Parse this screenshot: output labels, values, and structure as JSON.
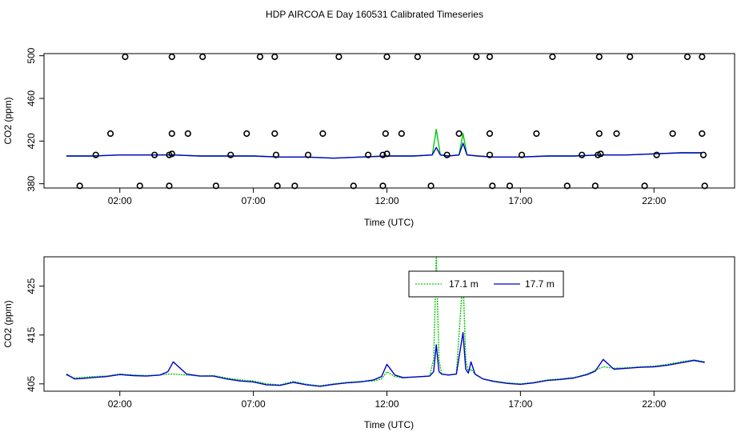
{
  "title": "HDP AIRCOA E  Day 160531  Calibrated Timeseries",
  "colors": {
    "green": "#00c800",
    "blue": "#0000cc",
    "axis": "#000000",
    "points": "#000000"
  },
  "chart_data": [
    {
      "type": "scatter",
      "name": "top-panel",
      "xlabel": "Time (UTC)",
      "ylabel": "CO2 (ppm)",
      "xlim": [
        0,
        24
      ],
      "ylim": [
        376,
        502
      ],
      "xticks": [
        2,
        7,
        12,
        17,
        22
      ],
      "xtick_labels": [
        "02:00",
        "07:00",
        "12:00",
        "17:00",
        "22:00"
      ],
      "yticks": [
        380,
        420,
        460,
        500
      ],
      "ytick_labels": [
        "380",
        "420",
        "460",
        "500"
      ],
      "points": [
        {
          "x": 2.2,
          "y": 499
        },
        {
          "x": 3.95,
          "y": 499
        },
        {
          "x": 5.1,
          "y": 499
        },
        {
          "x": 7.25,
          "y": 499
        },
        {
          "x": 7.8,
          "y": 499
        },
        {
          "x": 10.2,
          "y": 499
        },
        {
          "x": 12.0,
          "y": 499
        },
        {
          "x": 13.15,
          "y": 499
        },
        {
          "x": 15.35,
          "y": 499
        },
        {
          "x": 15.85,
          "y": 499
        },
        {
          "x": 18.2,
          "y": 499
        },
        {
          "x": 19.95,
          "y": 499
        },
        {
          "x": 21.1,
          "y": 499
        },
        {
          "x": 23.25,
          "y": 499
        },
        {
          "x": 23.8,
          "y": 499
        },
        {
          "x": 1.65,
          "y": 427
        },
        {
          "x": 3.95,
          "y": 427
        },
        {
          "x": 4.55,
          "y": 427
        },
        {
          "x": 6.75,
          "y": 427
        },
        {
          "x": 7.8,
          "y": 427
        },
        {
          "x": 9.6,
          "y": 427
        },
        {
          "x": 11.95,
          "y": 427
        },
        {
          "x": 12.55,
          "y": 427
        },
        {
          "x": 14.7,
          "y": 427
        },
        {
          "x": 15.85,
          "y": 427
        },
        {
          "x": 17.6,
          "y": 427
        },
        {
          "x": 19.95,
          "y": 427
        },
        {
          "x": 20.6,
          "y": 427
        },
        {
          "x": 22.7,
          "y": 427
        },
        {
          "x": 23.8,
          "y": 427
        },
        {
          "x": 1.1,
          "y": 407
        },
        {
          "x": 3.3,
          "y": 407
        },
        {
          "x": 3.85,
          "y": 407
        },
        {
          "x": 3.95,
          "y": 408
        },
        {
          "x": 6.15,
          "y": 407
        },
        {
          "x": 7.85,
          "y": 407
        },
        {
          "x": 9.05,
          "y": 407
        },
        {
          "x": 11.3,
          "y": 407
        },
        {
          "x": 11.85,
          "y": 407
        },
        {
          "x": 12.0,
          "y": 408
        },
        {
          "x": 14.25,
          "y": 407
        },
        {
          "x": 15.85,
          "y": 407
        },
        {
          "x": 17.05,
          "y": 407
        },
        {
          "x": 19.3,
          "y": 407
        },
        {
          "x": 19.9,
          "y": 407
        },
        {
          "x": 20.0,
          "y": 408
        },
        {
          "x": 22.1,
          "y": 407
        },
        {
          "x": 23.85,
          "y": 407
        },
        {
          "x": 0.5,
          "y": 378
        },
        {
          "x": 2.75,
          "y": 378
        },
        {
          "x": 3.85,
          "y": 378
        },
        {
          "x": 5.6,
          "y": 378
        },
        {
          "x": 7.9,
          "y": 378
        },
        {
          "x": 8.55,
          "y": 378
        },
        {
          "x": 10.75,
          "y": 378
        },
        {
          "x": 11.85,
          "y": 378
        },
        {
          "x": 13.65,
          "y": 378
        },
        {
          "x": 15.95,
          "y": 378
        },
        {
          "x": 16.6,
          "y": 378
        },
        {
          "x": 18.75,
          "y": 378
        },
        {
          "x": 19.8,
          "y": 378
        },
        {
          "x": 21.65,
          "y": 378
        },
        {
          "x": 23.9,
          "y": 378
        }
      ],
      "series": [
        {
          "name": "17.1 m",
          "color": "#00c800",
          "x": [
            0,
            1,
            2,
            3,
            4,
            5,
            6,
            7,
            8,
            9,
            10,
            11,
            12,
            13,
            13.7,
            13.85,
            14.0,
            14.3,
            14.7,
            14.85,
            15.0,
            15.4,
            16,
            17,
            18,
            19,
            20,
            21,
            22,
            23,
            23.8
          ],
          "y": [
            406,
            406,
            407,
            407,
            407,
            406,
            406,
            406,
            405,
            405,
            404,
            405,
            406,
            406,
            407,
            431,
            407,
            406,
            407,
            427,
            407,
            406,
            405,
            405,
            406,
            406,
            407,
            407,
            408,
            409,
            409
          ]
        },
        {
          "name": "17.7 m",
          "color": "#0000cc",
          "x": [
            0,
            1,
            2,
            3,
            4,
            5,
            6,
            7,
            8,
            9,
            10,
            11,
            12,
            13,
            13.7,
            13.85,
            14.0,
            14.3,
            14.7,
            14.85,
            15.0,
            15.4,
            16,
            17,
            18,
            19,
            20,
            21,
            22,
            23,
            23.8
          ],
          "y": [
            406,
            406,
            407,
            407,
            407,
            406,
            406,
            406,
            405,
            405,
            404,
            405,
            406,
            406,
            407,
            414,
            407,
            406,
            407,
            418,
            407,
            406,
            405,
            405,
            406,
            406,
            407,
            407,
            408,
            409,
            409
          ]
        }
      ]
    },
    {
      "type": "line",
      "name": "bottom-panel",
      "xlabel": "Time (UTC)",
      "ylabel": "CO2 (ppm)",
      "xlim": [
        0,
        24
      ],
      "ylim": [
        403.5,
        431
      ],
      "xticks": [
        2,
        7,
        12,
        17,
        22
      ],
      "xtick_labels": [
        "02:00",
        "07:00",
        "12:00",
        "17:00",
        "22:00"
      ],
      "yticks": [
        405,
        415,
        425
      ],
      "ytick_labels": [
        "405",
        "415",
        "425"
      ],
      "legend": {
        "position": "top-right-center",
        "entries": [
          "17.1 m",
          "17.7 m"
        ]
      },
      "series": [
        {
          "name": "17.1 m",
          "color": "#00c800",
          "dash": true,
          "x": [
            0,
            0.3,
            0.6,
            1,
            1.5,
            2,
            2.5,
            3,
            3.5,
            3.8,
            4,
            4.5,
            5,
            5.5,
            6,
            6.5,
            7,
            7.5,
            8,
            8.5,
            9,
            9.5,
            10,
            10.5,
            11,
            11.5,
            11.8,
            12,
            12.3,
            12.6,
            13,
            13.3,
            13.6,
            13.75,
            13.85,
            13.95,
            14.05,
            14.3,
            14.6,
            14.85,
            14.95,
            15.05,
            15.15,
            15.3,
            15.6,
            16,
            16.5,
            17,
            17.5,
            18,
            18.5,
            19,
            19.5,
            19.8,
            20.1,
            20.5,
            21,
            21.5,
            22,
            22.5,
            23,
            23.5,
            23.9
          ],
          "y": [
            406.8,
            406.2,
            406.3,
            406.5,
            406.6,
            407.0,
            406.8,
            406.7,
            406.8,
            407.0,
            407.0,
            406.8,
            406.6,
            406.7,
            406.2,
            405.8,
            405.6,
            405.0,
            404.8,
            405.5,
            404.9,
            404.6,
            405.0,
            405.3,
            405.5,
            405.6,
            406.0,
            407.5,
            406.5,
            406.2,
            406.4,
            406.5,
            406.6,
            410.0,
            431.0,
            410.0,
            407.0,
            406.8,
            407.0,
            427.0,
            410.0,
            407.5,
            408.0,
            407.0,
            406.0,
            405.6,
            405.2,
            405.0,
            405.3,
            405.8,
            406.0,
            406.3,
            407.0,
            407.8,
            408.5,
            408.2,
            408.3,
            408.5,
            408.6,
            409.0,
            409.5,
            409.9,
            409.5
          ]
        },
        {
          "name": "17.7 m",
          "color": "#0000cc",
          "dash": false,
          "x": [
            0,
            0.3,
            0.6,
            1,
            1.5,
            2,
            2.5,
            3,
            3.5,
            3.8,
            4,
            4.5,
            5,
            5.5,
            6,
            6.5,
            7,
            7.5,
            8,
            8.5,
            9,
            9.5,
            10,
            10.5,
            11,
            11.5,
            11.8,
            12,
            12.3,
            12.6,
            13,
            13.3,
            13.6,
            13.75,
            13.85,
            13.95,
            14.05,
            14.3,
            14.6,
            14.85,
            14.95,
            15.05,
            15.15,
            15.3,
            15.6,
            16,
            16.5,
            17,
            17.5,
            18,
            18.5,
            19,
            19.5,
            19.8,
            20.1,
            20.5,
            21,
            21.5,
            22,
            22.5,
            23,
            23.5,
            23.9
          ],
          "y": [
            407.0,
            406.0,
            406.1,
            406.3,
            406.5,
            406.9,
            406.7,
            406.6,
            406.8,
            407.5,
            409.5,
            407.0,
            406.6,
            406.6,
            406.0,
            405.6,
            405.4,
            404.8,
            404.7,
            405.3,
            404.8,
            404.5,
            404.9,
            405.2,
            405.4,
            405.8,
            406.5,
            409.0,
            406.8,
            406.3,
            406.4,
            406.5,
            406.6,
            407.5,
            413.0,
            407.5,
            407.0,
            406.8,
            407.0,
            415.5,
            408.0,
            407.2,
            409.5,
            407.0,
            406.0,
            405.5,
            405.1,
            404.9,
            405.2,
            405.7,
            405.9,
            406.2,
            406.9,
            407.6,
            410.0,
            408.0,
            408.2,
            408.4,
            408.5,
            408.8,
            409.3,
            409.8,
            409.4
          ]
        }
      ]
    }
  ]
}
